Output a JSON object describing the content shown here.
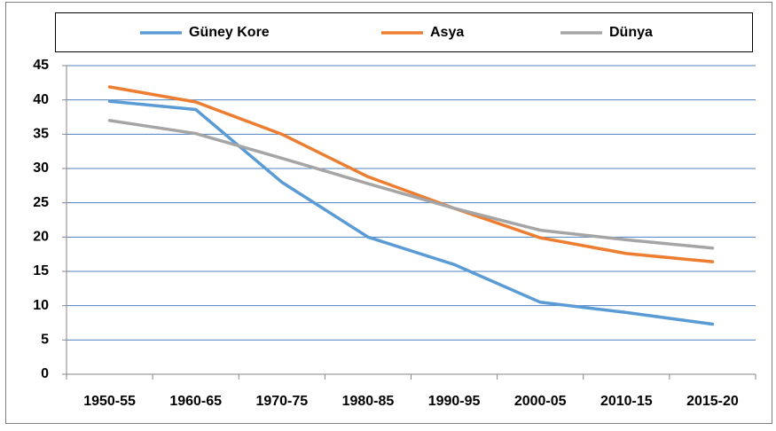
{
  "chart_data": {
    "type": "line",
    "categories": [
      "1950-55",
      "1960-65",
      "1970-75",
      "1980-85",
      "1990-95",
      "2000-05",
      "2010-15",
      "2015-20"
    ],
    "series": [
      {
        "name": "Güney Kore",
        "color": "#5b9bd5",
        "values": [
          39.8,
          38.6,
          28,
          20,
          16,
          10.5,
          9,
          7.3
        ]
      },
      {
        "name": "Asya",
        "color": "#ed7d31",
        "values": [
          41.9,
          39.7,
          35,
          28.8,
          24.2,
          19.9,
          17.6,
          16.4
        ]
      },
      {
        "name": "Dünya",
        "color": "#a5a5a5",
        "values": [
          37,
          35.1,
          31.5,
          27.8,
          24.2,
          21,
          19.6,
          18.4
        ]
      }
    ],
    "ylim": [
      0,
      45
    ],
    "yticks": [
      0,
      5,
      10,
      15,
      20,
      25,
      30,
      35,
      40,
      45
    ],
    "grid": true,
    "legend": "top"
  }
}
